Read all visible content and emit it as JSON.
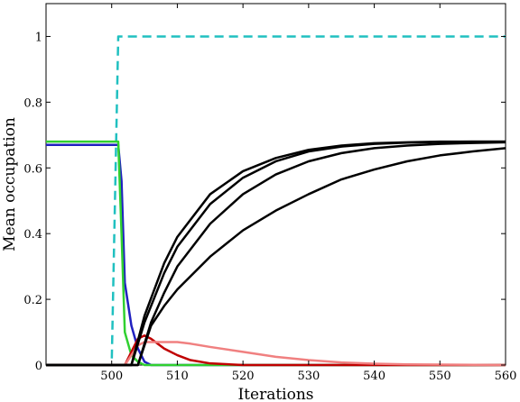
{
  "chart_data": {
    "type": "line",
    "title": "",
    "xlabel": "Iterations",
    "ylabel": "Mean occupation",
    "xlim": [
      490,
      560
    ],
    "ylim": [
      0,
      1.1
    ],
    "xticks": [
      500,
      510,
      520,
      530,
      540,
      550,
      560
    ],
    "yticks": [
      0,
      0.2,
      0.4,
      0.6,
      0.8,
      1
    ],
    "ytick_labels": [
      "0",
      "0.2",
      "0.4",
      "0.6",
      "0.8",
      "1"
    ],
    "grid": false,
    "legend": false,
    "series": [
      {
        "color": "#20c0c0",
        "dash": true,
        "x": [
          490,
          500,
          501,
          560
        ],
        "y": [
          0,
          0,
          1,
          1
        ]
      },
      {
        "color": "#2020c0",
        "x": [
          490,
          501,
          501.5,
          502,
          503,
          504,
          505,
          506,
          560
        ],
        "y": [
          0.67,
          0.67,
          0.56,
          0.25,
          0.12,
          0.05,
          0.01,
          0,
          0
        ]
      },
      {
        "color": "#30d030",
        "x": [
          490,
          501,
          501.5,
          502,
          503,
          504,
          505,
          506,
          560
        ],
        "y": [
          0.68,
          0.68,
          0.4,
          0.1,
          0.03,
          0.01,
          0,
          0,
          0
        ]
      },
      {
        "color": "#c00000",
        "x": [
          490,
          502,
          503,
          504,
          505,
          506,
          508,
          510,
          512,
          515,
          520,
          525,
          560
        ],
        "y": [
          0,
          0,
          0.04,
          0.08,
          0.09,
          0.08,
          0.05,
          0.03,
          0.015,
          0.005,
          0,
          0,
          0
        ]
      },
      {
        "color": "#f08080",
        "x": [
          490,
          502,
          503,
          504,
          505,
          506,
          508,
          510,
          512,
          515,
          520,
          525,
          530,
          535,
          540,
          545,
          560
        ],
        "y": [
          0,
          0,
          0.03,
          0.06,
          0.07,
          0.07,
          0.07,
          0.07,
          0.065,
          0.055,
          0.04,
          0.025,
          0.015,
          0.008,
          0.004,
          0.002,
          0
        ]
      },
      {
        "color": "#000000",
        "x": [
          490,
          503,
          505,
          508,
          510,
          515,
          520,
          525,
          530,
          535,
          540,
          545,
          550,
          555,
          560
        ],
        "y": [
          0,
          0,
          0.15,
          0.31,
          0.39,
          0.52,
          0.59,
          0.63,
          0.655,
          0.668,
          0.675,
          0.678,
          0.68,
          0.68,
          0.68
        ]
      },
      {
        "color": "#000000",
        "x": [
          490,
          503,
          505,
          508,
          510,
          515,
          520,
          525,
          530,
          535,
          540,
          545,
          550,
          555,
          560
        ],
        "y": [
          0,
          0,
          0.13,
          0.28,
          0.36,
          0.49,
          0.57,
          0.62,
          0.65,
          0.665,
          0.673,
          0.677,
          0.679,
          0.68,
          0.68
        ]
      },
      {
        "color": "#000000",
        "x": [
          490,
          504,
          506,
          508,
          510,
          515,
          520,
          525,
          530,
          535,
          540,
          545,
          550,
          555,
          560
        ],
        "y": [
          0,
          0,
          0.13,
          0.22,
          0.3,
          0.43,
          0.52,
          0.58,
          0.62,
          0.645,
          0.66,
          0.668,
          0.673,
          0.676,
          0.678
        ]
      },
      {
        "color": "#000000",
        "x": [
          490,
          504,
          506,
          508,
          510,
          515,
          520,
          525,
          530,
          535,
          540,
          545,
          550,
          555,
          560
        ],
        "y": [
          0,
          0,
          0.12,
          0.18,
          0.23,
          0.33,
          0.41,
          0.47,
          0.52,
          0.565,
          0.595,
          0.62,
          0.638,
          0.65,
          0.66
        ]
      }
    ]
  }
}
